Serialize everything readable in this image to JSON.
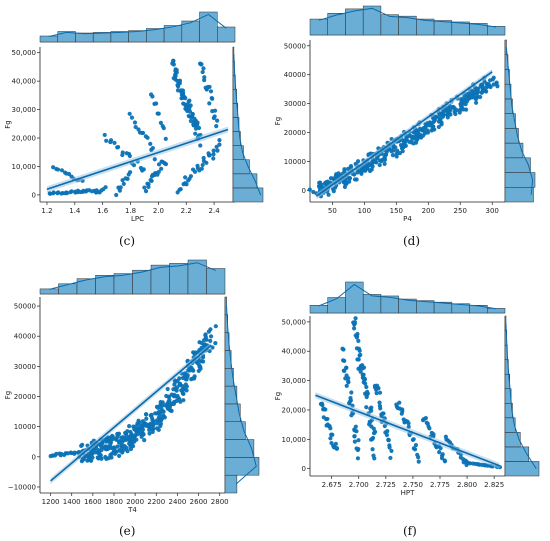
{
  "colors": {
    "point": "#0b72b5",
    "line": "#0b6aab",
    "hist_fill": "#6aaed6",
    "hist_edge": "#2a2a2a",
    "band": "#9cc6e4"
  },
  "chart_data": [
    {
      "panel": "(c)",
      "type": "scatter",
      "subtype": "joint scatter with regression and marginal histograms",
      "xlabel": "LPC",
      "ylabel": "Fg",
      "xlim": [
        1.15,
        2.55
      ],
      "ylim": [
        -2500,
        52000
      ],
      "x_ticks": [
        "1.2",
        "1.4",
        "1.6",
        "1.8",
        "2.0",
        "2.2",
        "2.4"
      ],
      "x_tick_values": [
        1.2,
        1.4,
        1.6,
        1.8,
        2.0,
        2.2,
        2.4
      ],
      "y_ticks": [
        "0",
        "10,000",
        "20,000",
        "30,000",
        "40,000",
        "50,000"
      ],
      "y_tick_values": [
        0,
        10000,
        20000,
        30000,
        40000,
        50000
      ],
      "regression": {
        "x": [
          1.2,
          2.5
        ],
        "y": [
          2000,
          23000
        ]
      },
      "marginal_x_counts": [
        0.2,
        0.35,
        0.3,
        0.32,
        0.35,
        0.38,
        0.45,
        0.55,
        0.7,
        1.0,
        0.5
      ],
      "marginal_y_counts": [
        1.0,
        0.8,
        0.55,
        0.35,
        0.25,
        0.2,
        0.16,
        0.12,
        0.08,
        0.05,
        0.03
      ],
      "bands": [
        {
          "x0": 1.22,
          "x1": 1.55,
          "y0": 500,
          "y1": 1500,
          "n": 26
        },
        {
          "x0": 1.25,
          "x1": 1.45,
          "y0": 10000,
          "y1": 4500,
          "n": 12
        },
        {
          "x0": 1.55,
          "x1": 1.62,
          "y0": 500,
          "y1": 2500,
          "n": 6
        },
        {
          "x0": 1.62,
          "x1": 1.9,
          "y0": 20000,
          "y1": 9000,
          "n": 18
        },
        {
          "x0": 1.8,
          "x1": 1.98,
          "y0": 29000,
          "y1": 14000,
          "n": 14
        },
        {
          "x0": 1.95,
          "x1": 2.05,
          "y0": 36000,
          "y1": 20000,
          "n": 10
        },
        {
          "x0": 2.1,
          "x1": 2.3,
          "y0": 45000,
          "y1": 20000,
          "n": 70
        },
        {
          "x0": 2.3,
          "x1": 2.42,
          "y0": 48000,
          "y1": 25000,
          "n": 22
        },
        {
          "x0": 2.15,
          "x1": 2.45,
          "y0": 2000,
          "y1": 18000,
          "n": 30
        },
        {
          "x0": 1.9,
          "x1": 2.05,
          "y0": 2000,
          "y1": 12000,
          "n": 20
        },
        {
          "x0": 1.7,
          "x1": 1.8,
          "y0": 1000,
          "y1": 8000,
          "n": 10
        }
      ]
    },
    {
      "panel": "(d)",
      "type": "scatter",
      "subtype": "joint scatter with regression and marginal histograms",
      "xlabel": "P4",
      "ylabel": "Fg",
      "xlim": [
        15,
        320
      ],
      "ylim": [
        -4000,
        52000
      ],
      "x_ticks": [
        "50",
        "100",
        "150",
        "200",
        "250",
        "300"
      ],
      "x_tick_values": [
        50,
        100,
        150,
        200,
        250,
        300
      ],
      "y_ticks": [
        "0",
        "10000",
        "20000",
        "30000",
        "40000",
        "50000"
      ],
      "y_tick_values": [
        0,
        10000,
        20000,
        30000,
        40000,
        50000
      ],
      "regression": {
        "x": [
          25,
          300
        ],
        "y": [
          -2000,
          41000
        ]
      },
      "marginal_x_counts": [
        0.55,
        0.75,
        0.9,
        1.0,
        0.7,
        0.65,
        0.55,
        0.5,
        0.45,
        0.4,
        0.3
      ],
      "marginal_y_counts": [
        0.95,
        1.0,
        0.85,
        0.6,
        0.45,
        0.35,
        0.25,
        0.2,
        0.15,
        0.1,
        0.05
      ],
      "bands": [
        {
          "x0": 25,
          "x1": 300,
          "y0": 0,
          "y1": 38000,
          "n": 420,
          "spread": 4500,
          "curve": 1.15
        }
      ]
    },
    {
      "panel": "(e)",
      "type": "scatter",
      "subtype": "joint scatter with regression and marginal histograms",
      "xlabel": "T4",
      "ylabel": "Fg",
      "xlim": [
        1100,
        2850
      ],
      "ylim": [
        -12000,
        53000
      ],
      "x_ticks": [
        "1200",
        "1400",
        "1600",
        "1800",
        "2000",
        "2200",
        "2400",
        "2600",
        "2800"
      ],
      "x_tick_values": [
        1200,
        1400,
        1600,
        1800,
        2000,
        2200,
        2400,
        2600,
        2800
      ],
      "y_ticks": [
        "−10000",
        "0",
        "10000",
        "20000",
        "30000",
        "40000",
        "50000"
      ],
      "y_tick_values": [
        -10000,
        0,
        10000,
        20000,
        30000,
        40000,
        50000
      ],
      "regression": {
        "x": [
          1200,
          2720
        ],
        "y": [
          -8000,
          37000
        ]
      },
      "marginal_x_counts": [
        0.15,
        0.3,
        0.45,
        0.55,
        0.6,
        0.7,
        0.85,
        0.9,
        1.0,
        0.75
      ],
      "marginal_y_counts": [
        0.35,
        1.0,
        0.85,
        0.6,
        0.45,
        0.35,
        0.25,
        0.18,
        0.12,
        0.08,
        0.05
      ],
      "bands": [
        {
          "x0": 1200,
          "x1": 1500,
          "y0": 500,
          "y1": 1500,
          "n": 20
        },
        {
          "x0": 1500,
          "x1": 2720,
          "y0": 2000,
          "y1": 40000,
          "n": 380,
          "spread": 7000,
          "curve": 2.2
        }
      ]
    },
    {
      "panel": "(f)",
      "type": "scatter",
      "subtype": "joint scatter with regression and marginal histograms",
      "xlabel": "HPT",
      "ylabel": "Fg",
      "xlim": [
        2.655,
        2.835
      ],
      "ylim": [
        -2500,
        52000
      ],
      "x_ticks": [
        "2.675",
        "2.700",
        "2.725",
        "2.750",
        "2.775",
        "2.800",
        "2.825"
      ],
      "x_tick_values": [
        2.675,
        2.7,
        2.725,
        2.75,
        2.775,
        2.8,
        2.825
      ],
      "y_ticks": [
        "0",
        "10,000",
        "20,000",
        "30,000",
        "40,000",
        "50,000"
      ],
      "y_tick_values": [
        0,
        10000,
        20000,
        30000,
        40000,
        50000
      ],
      "regression": {
        "x": [
          2.66,
          2.83
        ],
        "y": [
          25000,
          1000
        ]
      },
      "marginal_x_counts": [
        0.25,
        0.5,
        1.0,
        0.6,
        0.55,
        0.45,
        0.4,
        0.35,
        0.3,
        0.25,
        0.15
      ],
      "marginal_y_counts": [
        1.0,
        0.7,
        0.45,
        0.3,
        0.22,
        0.18,
        0.14,
        0.1,
        0.07,
        0.05,
        0.03
      ],
      "bands": [
        {
          "x0": 2.665,
          "x1": 2.68,
          "y0": 23000,
          "y1": 5000,
          "n": 24
        },
        {
          "x0": 2.685,
          "x1": 2.7,
          "y0": 40000,
          "y1": 5000,
          "n": 36
        },
        {
          "x0": 2.695,
          "x1": 2.715,
          "y0": 50000,
          "y1": 8000,
          "n": 60
        },
        {
          "x0": 2.715,
          "x1": 2.73,
          "y0": 30000,
          "y1": 5000,
          "n": 30
        },
        {
          "x0": 2.735,
          "x1": 2.755,
          "y0": 24000,
          "y1": 4000,
          "n": 26
        },
        {
          "x0": 2.76,
          "x1": 2.78,
          "y0": 17000,
          "y1": 3000,
          "n": 22
        },
        {
          "x0": 2.78,
          "x1": 2.8,
          "y0": 11000,
          "y1": 1500,
          "n": 20
        },
        {
          "x0": 2.8,
          "x1": 2.83,
          "y0": 2000,
          "y1": 500,
          "n": 18
        }
      ]
    }
  ]
}
